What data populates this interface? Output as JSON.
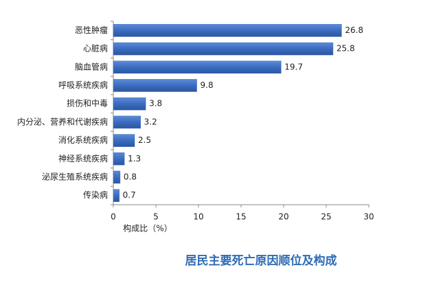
{
  "chart_data": {
    "type": "hbar",
    "title": "居民主要死亡原因顺位及构成",
    "x_label": "构成比（%）",
    "categories": [
      "恶性肿瘤",
      "心脏病",
      "脑血管病",
      "呼吸系统疾病",
      "损伤和中毒",
      "内分泌、营养和代谢疾病",
      "消化系统疾病",
      "神经系统疾病",
      "泌尿生殖系统疾病",
      "传染病"
    ],
    "values": [
      26.8,
      25.8,
      19.7,
      9.8,
      3.8,
      3.2,
      2.5,
      1.3,
      0.8,
      0.7
    ],
    "color": "#3b6cc0",
    "xlim": [
      0,
      30
    ],
    "xticks": [
      0,
      5,
      10,
      15,
      20,
      25,
      30
    ],
    "grid": false
  }
}
